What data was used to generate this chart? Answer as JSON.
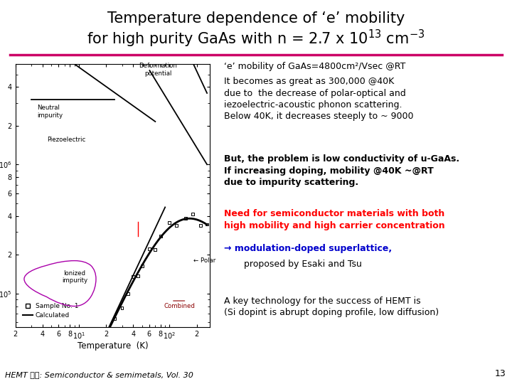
{
  "title_line1": "Temperature dependence of ‘e’ mobility",
  "title_line2": "for high purity GaAs with n = 2.7 x 10$^{13}$ cm$^{-3}$",
  "title_fontsize": 15,
  "separator_color": "#cc0066",
  "bg_color": "#ffffff",
  "footer_text": "HEMT 관련: Semiconductor & semimetals, Vol. 30",
  "page_num": "13"
}
